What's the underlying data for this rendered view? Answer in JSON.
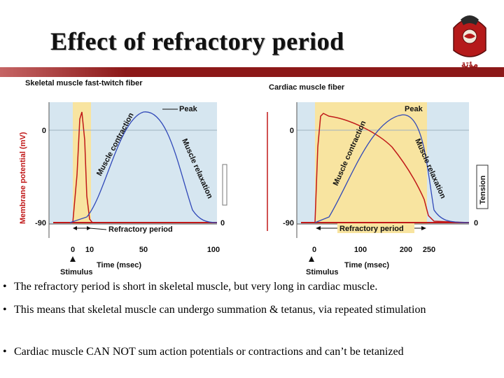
{
  "title": "Effect of refractory period",
  "logo": {
    "icon": "university-crest-icon",
    "script_text": "مؤتة"
  },
  "colors": {
    "title_bar": "#8c1818",
    "plot_bg": "#d6e6f0",
    "refractory": "#f8e4a0",
    "membrane_potential": "#c01818",
    "tension": "#3048b8"
  },
  "skeletal": {
    "heading": "Skeletal muscle fast-twitch fiber",
    "y_axis_label": "Membrane potential (mV)",
    "y_ticks": [
      "0",
      "-90"
    ],
    "x_ticks": [
      "0",
      "10",
      "50",
      "100"
    ],
    "x_axis_label": "Time (msec)",
    "stimulus_label": "Stimulus",
    "refractory_label": "Refractory period",
    "contraction_label": "Muscle contraction",
    "relaxation_label": "Muscle relaxation",
    "peak_label": "Peak",
    "right_tick": "0"
  },
  "cardiac": {
    "heading": "Cardiac muscle fiber",
    "y_ticks": [
      "0",
      "-90"
    ],
    "x_ticks": [
      "0",
      "100",
      "200",
      "250"
    ],
    "x_axis_label": "Time (msec)",
    "stimulus_label": "Stimulus",
    "refractory_label": "Refractory period",
    "contraction_label": "Muscle contraction",
    "relaxation_label": "Muscle relaxation",
    "peak_label": "Peak",
    "tension_label": "Tension",
    "right_tick": "0"
  },
  "bullets": [
    "The refractory period is short in skeletal muscle, but very long in cardiac muscle.",
    "This means that skeletal muscle can undergo summation & tetanus, via repeated stimulation",
    "Cardiac muscle CAN NOT sum action potentials or contractions and can’t be tetanized"
  ],
  "bullet_symbol": "•"
}
